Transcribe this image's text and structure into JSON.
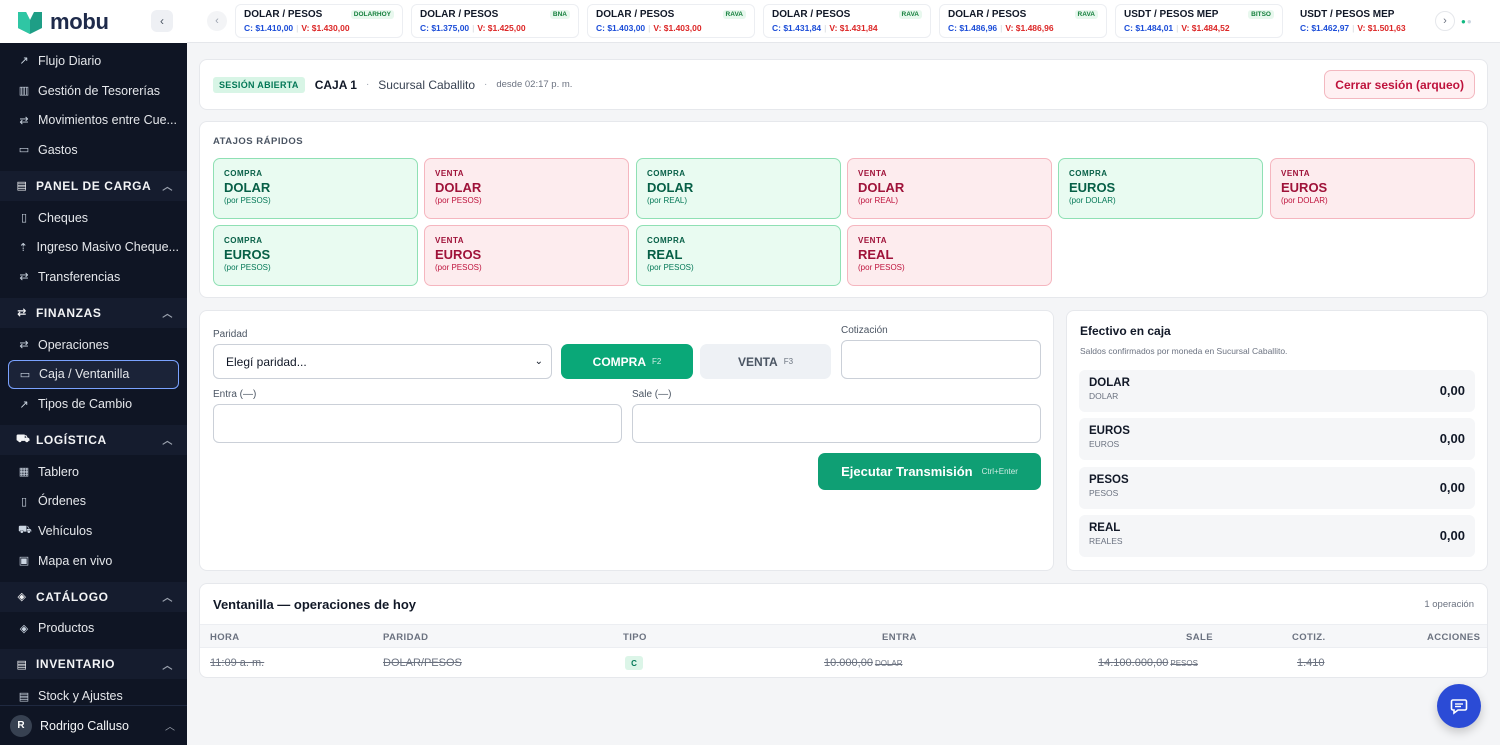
{
  "brand": {
    "name": "mobu"
  },
  "sidebar": {
    "items_top": [
      {
        "label": "Flujo Diario",
        "icon": "trend-icon"
      },
      {
        "label": "Gestión de Tesorerías",
        "icon": "building-icon"
      },
      {
        "label": "Movimientos entre Cue...",
        "icon": "transfer-icon"
      },
      {
        "label": "Gastos",
        "icon": "wallet-icon"
      }
    ],
    "panel_de_carga": {
      "title": "PANEL DE CARGA",
      "items": [
        "Cheques",
        "Ingreso Masivo Cheque...",
        "Transferencias"
      ]
    },
    "finanzas": {
      "title": "FINANZAS",
      "items": [
        "Operaciones",
        "Caja / Ventanilla",
        "Tipos de Cambio"
      ]
    },
    "logistica": {
      "title": "LOGÍSTICA",
      "items": [
        "Tablero",
        "Órdenes",
        "Vehículos",
        "Mapa en vivo"
      ]
    },
    "catalogo": {
      "title": "CATÁLOGO",
      "items": [
        "Productos"
      ]
    },
    "inventario": {
      "title": "INVENTARIO",
      "items": [
        "Stock y Ajustes"
      ]
    },
    "user": {
      "initial": "R",
      "name": "Rodrigo Calluso"
    }
  },
  "ticker": [
    {
      "pair": "DOLAR / PESOS",
      "source": "DOLARHOY",
      "buy": "C: $1.410,00",
      "sell": "V: $1.430,00"
    },
    {
      "pair": "DOLAR / PESOS",
      "source": "BNA",
      "buy": "C: $1.375,00",
      "sell": "V: $1.425,00"
    },
    {
      "pair": "DOLAR / PESOS",
      "source": "RAVA",
      "buy": "C: $1.403,00",
      "sell": "V: $1.403,00"
    },
    {
      "pair": "DOLAR / PESOS",
      "source": "RAVA",
      "buy": "C: $1.431,84",
      "sell": "V: $1.431,84"
    },
    {
      "pair": "DOLAR / PESOS",
      "source": "RAVA",
      "buy": "C: $1.486,96",
      "sell": "V: $1.486,96"
    },
    {
      "pair": "USDT / PESOS MEP",
      "source": "BITSO",
      "buy": "C: $1.484,01",
      "sell": "V: $1.484,52"
    },
    {
      "pair": "USDT / PESOS MEP",
      "source": "",
      "buy": "C: $1.462,97",
      "sell": "V: $1.501,63"
    }
  ],
  "session": {
    "status": "SESIÓN ABIERTA",
    "caja": "CAJA 1",
    "sucursal": "Sucursal Caballito",
    "since": "desde 02:17 p. m.",
    "close_label": "Cerrar sesión (arqueo)"
  },
  "shortcuts": {
    "title": "ATAJOS RÁPIDOS",
    "items": [
      {
        "kind": "COMPRA",
        "currency": "DOLAR",
        "by": "(por PESOS)",
        "type": "buy"
      },
      {
        "kind": "VENTA",
        "currency": "DOLAR",
        "by": "(por PESOS)",
        "type": "sell"
      },
      {
        "kind": "COMPRA",
        "currency": "DOLAR",
        "by": "(por REAL)",
        "type": "buy"
      },
      {
        "kind": "VENTA",
        "currency": "DOLAR",
        "by": "(por REAL)",
        "type": "sell"
      },
      {
        "kind": "COMPRA",
        "currency": "EUROS",
        "by": "(por DOLAR)",
        "type": "buy"
      },
      {
        "kind": "VENTA",
        "currency": "EUROS",
        "by": "(por DOLAR)",
        "type": "sell"
      },
      {
        "kind": "COMPRA",
        "currency": "EUROS",
        "by": "(por PESOS)",
        "type": "buy"
      },
      {
        "kind": "VENTA",
        "currency": "EUROS",
        "by": "(por PESOS)",
        "type": "sell"
      },
      {
        "kind": "COMPRA",
        "currency": "REAL",
        "by": "(por PESOS)",
        "type": "buy"
      },
      {
        "kind": "VENTA",
        "currency": "REAL",
        "by": "(por PESOS)",
        "type": "sell"
      }
    ]
  },
  "form": {
    "paridad_label": "Paridad",
    "paridad_value": "Elegí paridad...",
    "compra_label": "COMPRA",
    "compra_key": "F2",
    "venta_label": "VENTA",
    "venta_key": "F3",
    "cotizacion_label": "Cotización",
    "cotizacion_value": "",
    "entra_label": "Entra (—)",
    "entra_value": "",
    "sale_label": "Sale (—)",
    "sale_value": "",
    "execute_label": "Ejecutar Transmisión",
    "execute_key": "Ctrl+Enter"
  },
  "cash": {
    "title": "Efectivo en caja",
    "subtitle": "Saldos confirmados por moneda en Sucursal Caballito.",
    "rows": [
      {
        "name": "DOLAR",
        "sub": "DOLAR",
        "amount": "0,00"
      },
      {
        "name": "EUROS",
        "sub": "EUROS",
        "amount": "0,00"
      },
      {
        "name": "PESOS",
        "sub": "PESOS",
        "amount": "0,00"
      },
      {
        "name": "REAL",
        "sub": "REALES",
        "amount": "0,00"
      }
    ]
  },
  "table": {
    "title": "Ventanilla — operaciones de hoy",
    "count": "1 operación",
    "headers": [
      "HORA",
      "PARIDAD",
      "TIPO",
      "ENTRA",
      "SALE",
      "COTIZ.",
      "ACCIONES"
    ],
    "rows": [
      {
        "hora": "11:09 a. m.",
        "paridad": "DOLAR/PESOS",
        "tipo": "C",
        "entra": "10.000,00",
        "entra_unit": "DOLAR",
        "sale": "14.100.000,00",
        "sale_unit": "PESOS",
        "cotiz": "1.410"
      }
    ]
  },
  "colors": {
    "accent": "#0aa878",
    "danger": "#be123c",
    "sidebar_bg": "#0f1524",
    "fab": "#2b4bd6"
  }
}
